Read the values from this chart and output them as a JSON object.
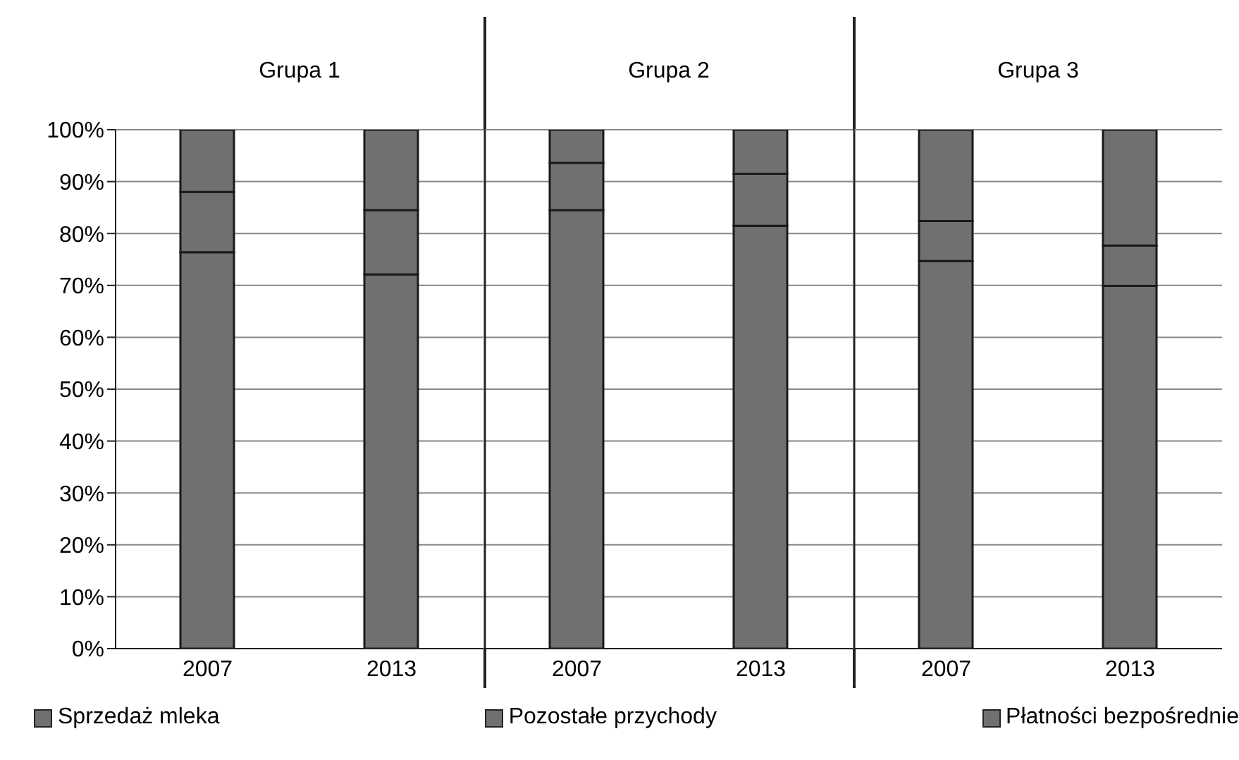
{
  "chart_data": [
    {
      "type": "bar",
      "title": "Grupa 1",
      "categories": [
        "2007",
        "2013"
      ],
      "stacked": true,
      "ylim": [
        0,
        100
      ],
      "yticks": [
        {
          "value": 0,
          "label": "0%"
        },
        {
          "value": 10,
          "label": "10%"
        },
        {
          "value": 20,
          "label": "20%"
        },
        {
          "value": 30,
          "label": "30%"
        },
        {
          "value": 40,
          "label": "40%"
        },
        {
          "value": 50,
          "label": "50%"
        },
        {
          "value": 60,
          "label": "60%"
        },
        {
          "value": 70,
          "label": "70%"
        },
        {
          "value": 80,
          "label": "80%"
        },
        {
          "value": 90,
          "label": "90%"
        },
        {
          "value": 100,
          "label": "100%"
        }
      ],
      "grid": "y",
      "legend": "bottom",
      "series": [
        {
          "name": "Sprzedaż mleka",
          "color": "#707070",
          "values": [
            76.4,
            72.1
          ]
        },
        {
          "name": "Pozostałe przychody",
          "color": "#707070",
          "values": [
            11.6,
            12.4
          ]
        },
        {
          "name": "Płatności bezpośrednie",
          "color": "#707070",
          "values": [
            12.0,
            15.5
          ]
        }
      ]
    },
    {
      "type": "bar",
      "title": "Grupa 2",
      "categories": [
        "2007",
        "2013"
      ],
      "stacked": true,
      "ylim": [
        0,
        100
      ],
      "yticks": [
        0,
        10,
        20,
        30,
        40,
        50,
        60,
        70,
        80,
        90,
        100
      ],
      "grid": "y",
      "tick_labels": "x",
      "series": [
        {
          "color": "#707070",
          "values": [
            84.5,
            81.5
          ]
        },
        {
          "color": "#707070",
          "values": [
            9.1,
            10.0
          ]
        },
        {
          "color": "#707070",
          "values": [
            6.4,
            8.5
          ]
        }
      ]
    },
    {
      "type": "bar",
      "title": "Grupa 3",
      "categories": [
        "2007",
        "2013"
      ],
      "stacked": true,
      "ylim": [
        0,
        100
      ],
      "yticks": [
        0,
        10,
        20,
        30,
        40,
        50,
        60,
        70,
        80,
        90,
        100
      ],
      "grid": "y",
      "tick_labels": "x",
      "series": [
        {
          "color": "#707070",
          "values": [
            74.7,
            69.9
          ]
        },
        {
          "color": "#707070",
          "values": [
            7.7,
            7.8
          ]
        },
        {
          "color": "#707070",
          "values": [
            17.6,
            22.3
          ]
        }
      ]
    }
  ]
}
